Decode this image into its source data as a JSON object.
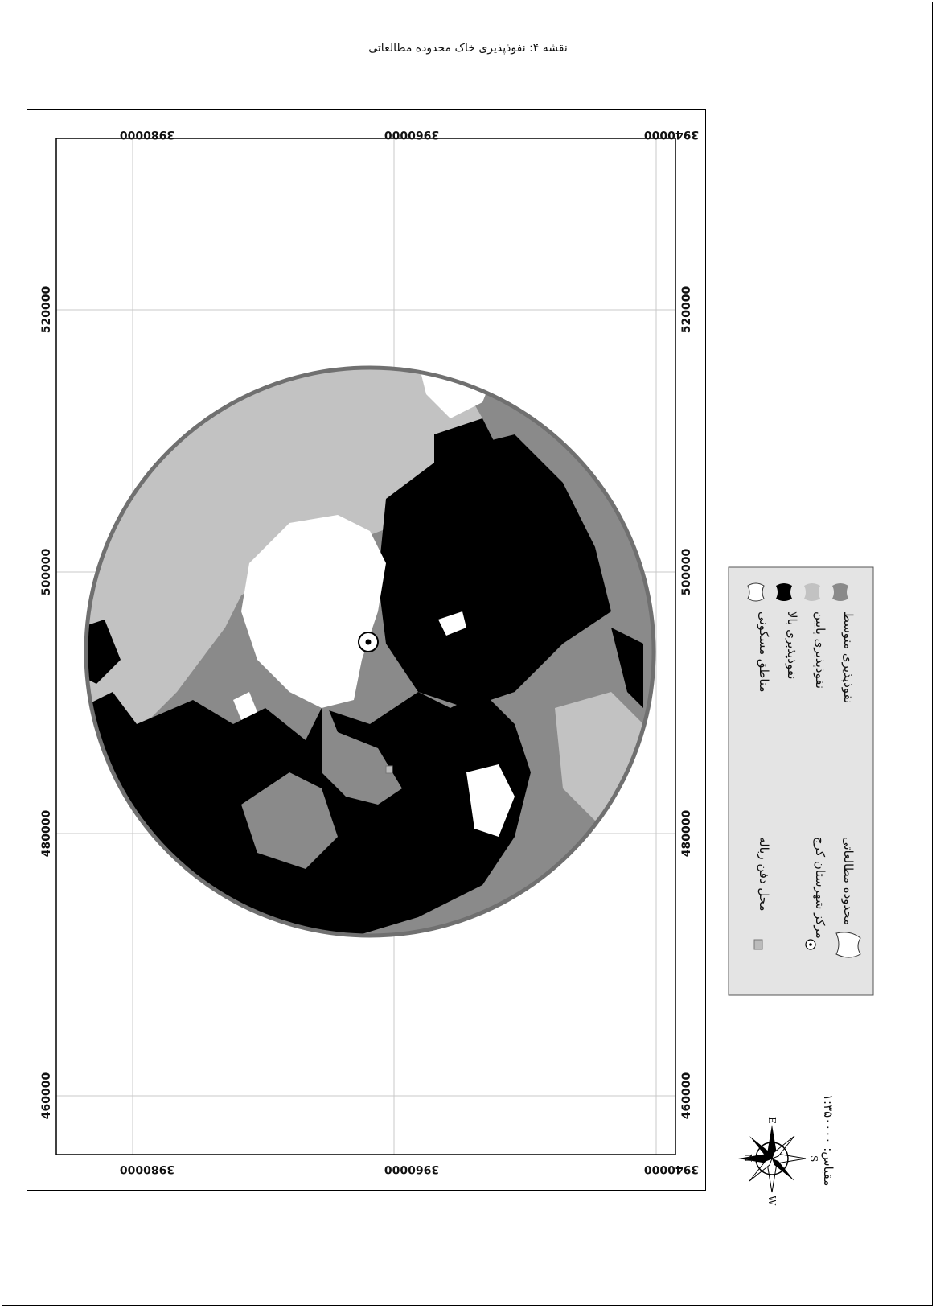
{
  "title": "نقشه ۴: نفوذپذیری خاک محدوده مطالعاتی",
  "map": {
    "x_ticks": [
      "460000",
      "480000",
      "500000",
      "520000"
    ],
    "y_ticks": [
      "3940000",
      "3960000",
      "3980000"
    ],
    "faint_suffix": "000000"
  },
  "legend": {
    "items_right": [
      {
        "label": "مناطق مسکونی",
        "color": "#ffffff"
      },
      {
        "label": "نفوذپذیری بالا",
        "color": "#000000"
      },
      {
        "label": "نفوذپذیری پایین",
        "color": "#c2c2c2"
      },
      {
        "label": "نفوذپذیری متوسط",
        "color": "#8a8a8a"
      }
    ],
    "items_left": [
      {
        "label": "محل دفن زباله",
        "icon": "landfill-icon"
      },
      {
        "label": "مرکز شهرستان کرج",
        "icon": "city-center-icon"
      },
      {
        "label": "محدوده مطالعاتی",
        "icon": "study-area-icon"
      }
    ]
  },
  "scale": {
    "text": "مقیاس: ۱:۳۵۰۰۰۰"
  },
  "compass": {
    "n": "N",
    "e": "E",
    "s": "S",
    "w": "W"
  },
  "colors": {
    "background": "#ffffff",
    "frame": "#000000",
    "study_boundary": "#707070",
    "legend_bg": "#e4e4e4"
  }
}
